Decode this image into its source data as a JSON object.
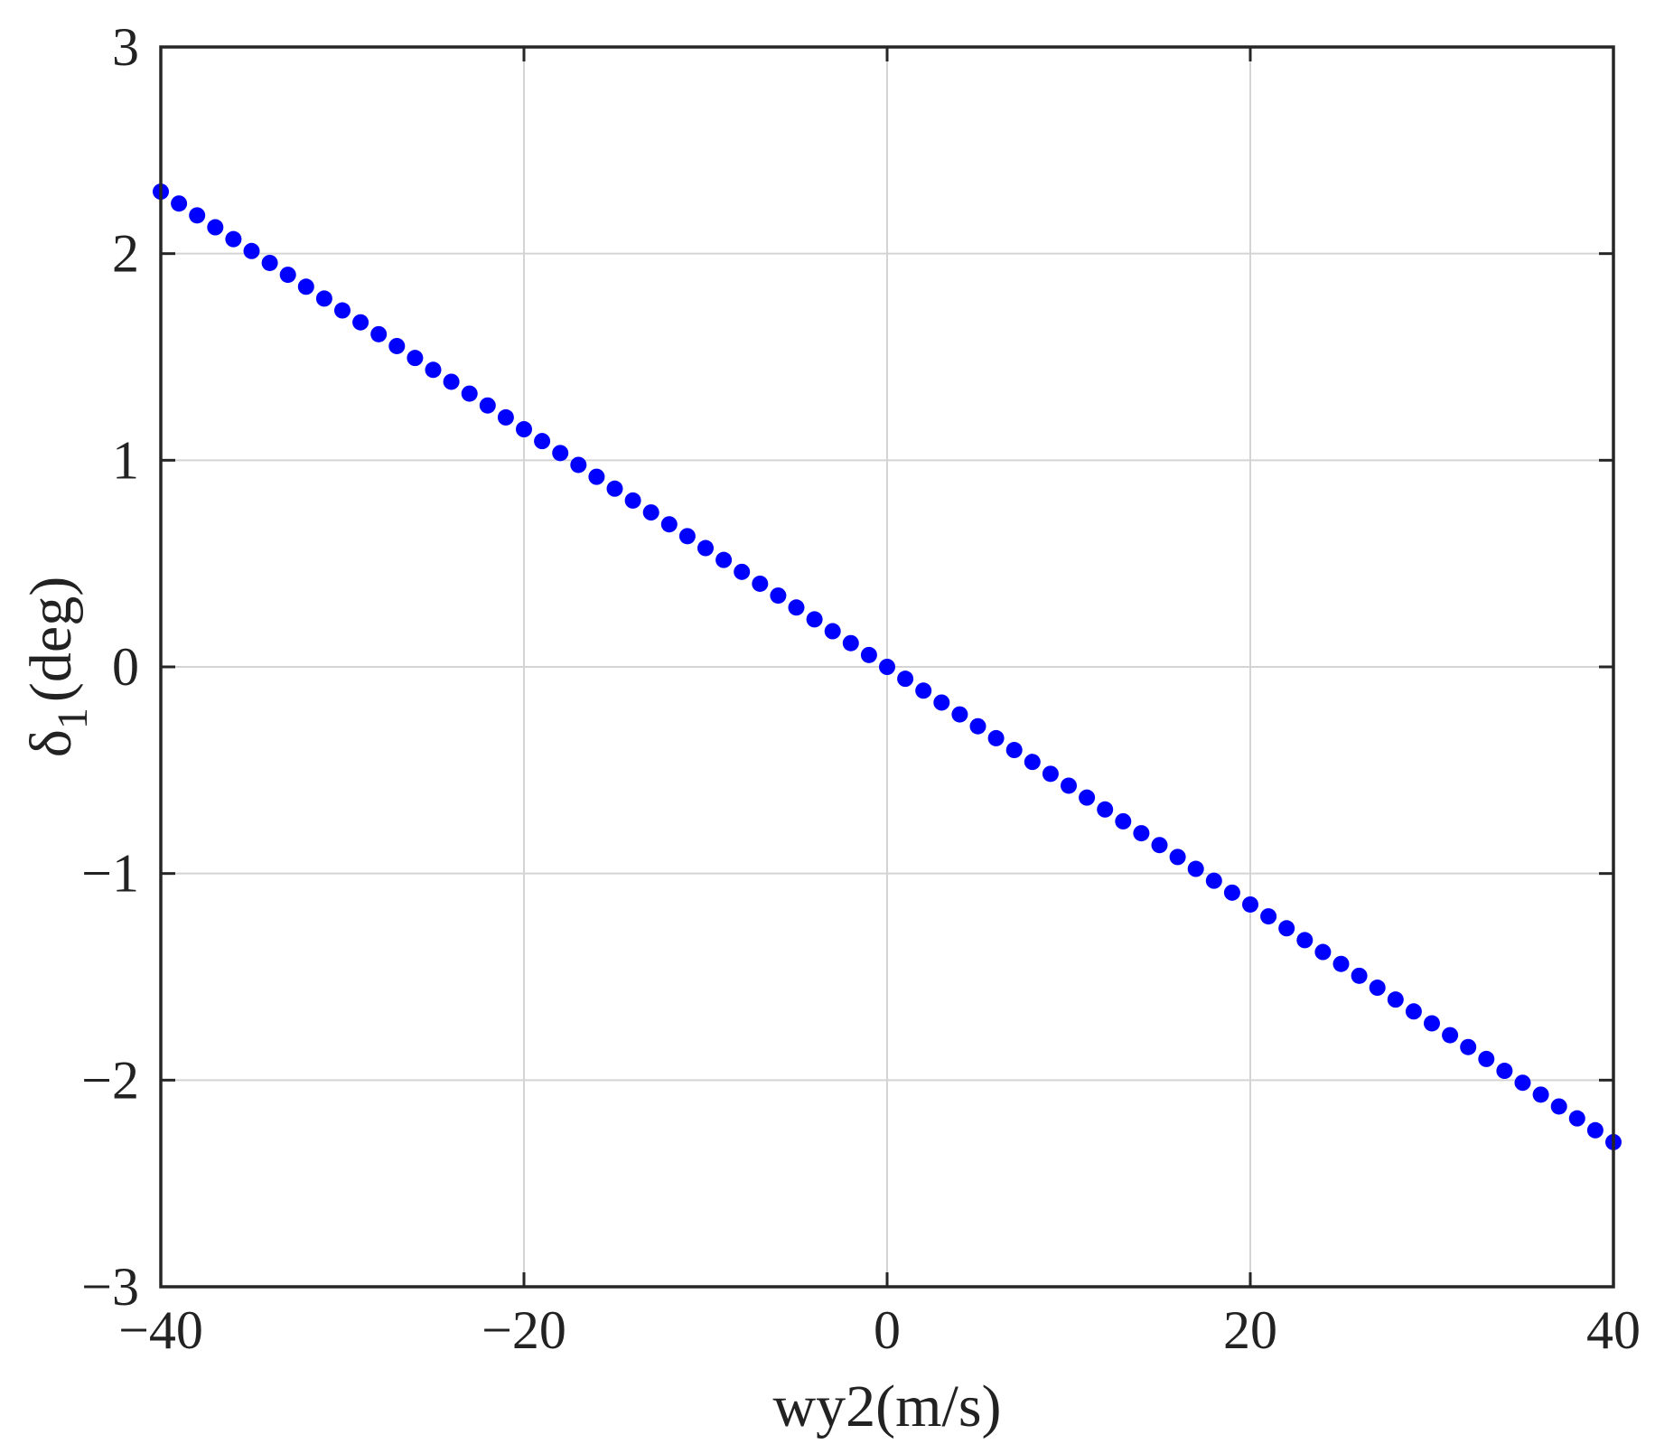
{
  "chart_data": {
    "type": "scatter",
    "title": "",
    "xlabel": "wy2(m/s)",
    "ylabel": {
      "symbol": "δ",
      "subscript": "1",
      "unit": "(deg)"
    },
    "xlim": [
      -40,
      40
    ],
    "ylim": [
      -3,
      3
    ],
    "xticks": [
      -40,
      -20,
      0,
      20,
      40
    ],
    "yticks": [
      -3,
      -2,
      -1,
      0,
      1,
      2,
      3
    ],
    "xtick_labels": [
      "−40",
      "−20",
      "0",
      "20",
      "40"
    ],
    "ytick_labels": [
      "−3",
      "−2",
      "−1",
      "0",
      "1",
      "2",
      "3"
    ],
    "grid": true,
    "marker_color": "#0000ff",
    "series": [
      {
        "x_start": -40,
        "x_end": 40,
        "x_step": 1,
        "slope": -0.0575,
        "y_at_x_start": 2.3,
        "y_at_x_end": -2.3
      }
    ]
  }
}
